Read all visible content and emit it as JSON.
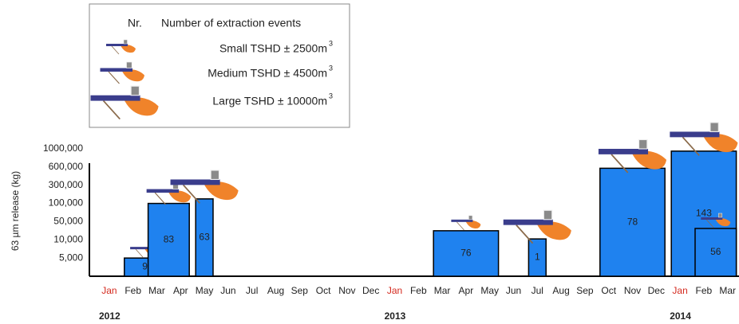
{
  "chart_data": {
    "type": "bar",
    "y_label": "63 µm release (kg)",
    "legend": {
      "header_nr": "Nr.",
      "header_text": "Number of extraction events",
      "items": [
        {
          "name": "Small TSHD ±  2500m",
          "power": "3"
        },
        {
          "name": "Medium TSHD ±  4500m",
          "power": "3"
        },
        {
          "name": "Large TSHD ±  10000m",
          "power": "3"
        }
      ]
    },
    "categories": [
      "Jan",
      "Feb",
      "Mar",
      "Apr",
      "May",
      "Jun",
      "Jul",
      "Aug",
      "Sep",
      "Oct",
      "Nov",
      "Dec",
      "Jan",
      "Feb",
      "Mar",
      "Apr",
      "May",
      "Jun",
      "Jul",
      "Aug",
      "Sep",
      "Oct",
      "Nov",
      "Dec",
      "Jan",
      "Feb",
      "Mar"
    ],
    "highlight": {
      "indices": [
        0,
        12,
        24
      ],
      "color": "#d42a1f"
    },
    "year_labels": [
      "2012",
      "2013",
      "2014"
    ],
    "year_starts": [
      0,
      12,
      24
    ],
    "ylim": [
      0,
      1000000
    ],
    "yticks": [
      {
        "value": 5000,
        "label": "5,000"
      },
      {
        "value": 10000,
        "label": "10,000"
      },
      {
        "value": 50000,
        "label": "50,000"
      },
      {
        "value": 100000,
        "label": "100,000"
      },
      {
        "value": 300000,
        "label": "300,000"
      },
      {
        "value": 600000,
        "label": "600,000"
      },
      {
        "value": 1000000,
        "label": "1000,000"
      }
    ],
    "color": "#1f82ef",
    "bars": [
      {
        "start": 1,
        "end": 2,
        "value": 5000,
        "events": 9,
        "vessel": 0
      },
      {
        "start": 2,
        "end": 3,
        "value": 100000,
        "events": 83,
        "vessel": 1
      },
      {
        "start": 4,
        "end": 4,
        "value": 150000,
        "events": 63,
        "vessel": 2
      },
      {
        "start": 14,
        "end": 16,
        "value": 30000,
        "events": 76,
        "vessel": 0
      },
      {
        "start": 18,
        "end": 18,
        "value": 12000,
        "events": 1,
        "vessel": 2
      },
      {
        "start": 21,
        "end": 23,
        "value": 580000,
        "events": 78,
        "vessel": 2
      },
      {
        "start": 24,
        "end": 26,
        "value": 950000,
        "events": 143,
        "vessel": 2
      },
      {
        "start": 25,
        "end": 26,
        "value": 35000,
        "events": 56,
        "vessel": 0
      }
    ]
  }
}
